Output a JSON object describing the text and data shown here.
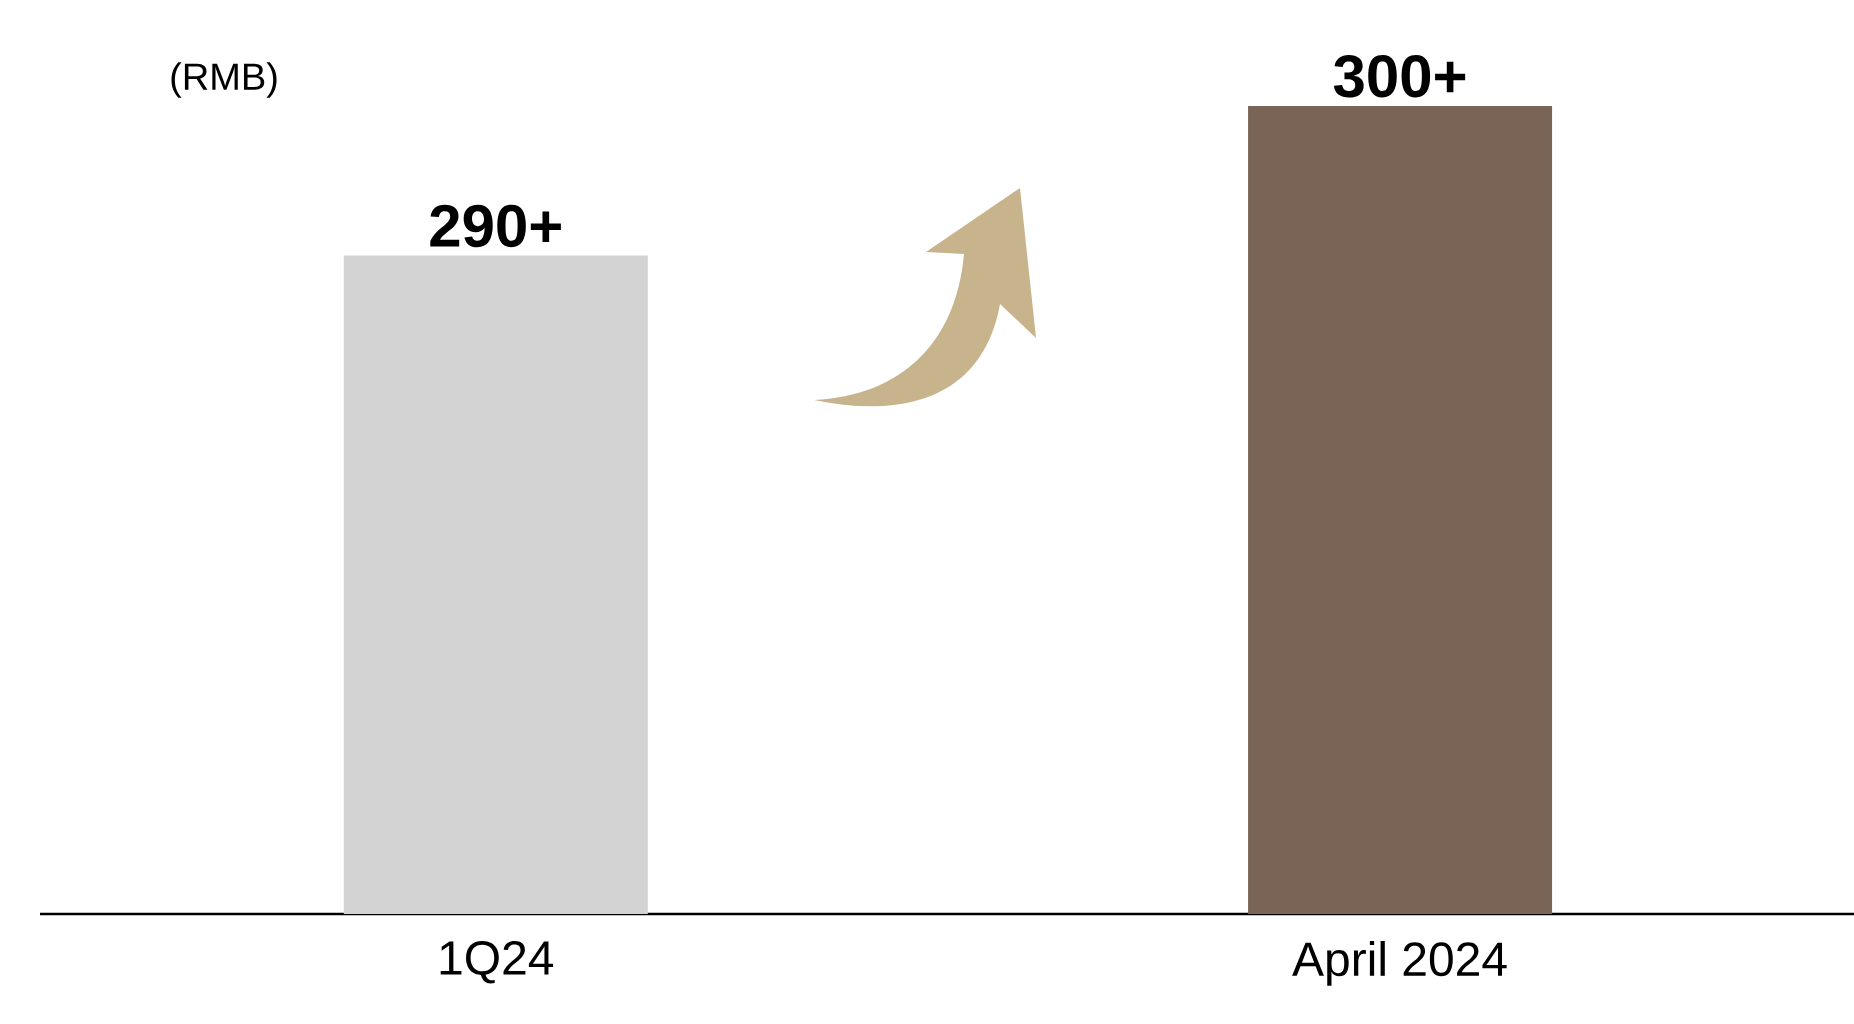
{
  "chart_data": {
    "type": "bar",
    "ylabel": "(RMB)",
    "categories": [
      "1Q24",
      "April 2024"
    ],
    "values": [
      290,
      300
    ],
    "ylim": [
      246,
      300
    ],
    "value_labels": [
      "290+",
      "300+"
    ],
    "colors": [
      "#d3d3d3",
      "#7a6455"
    ]
  }
}
